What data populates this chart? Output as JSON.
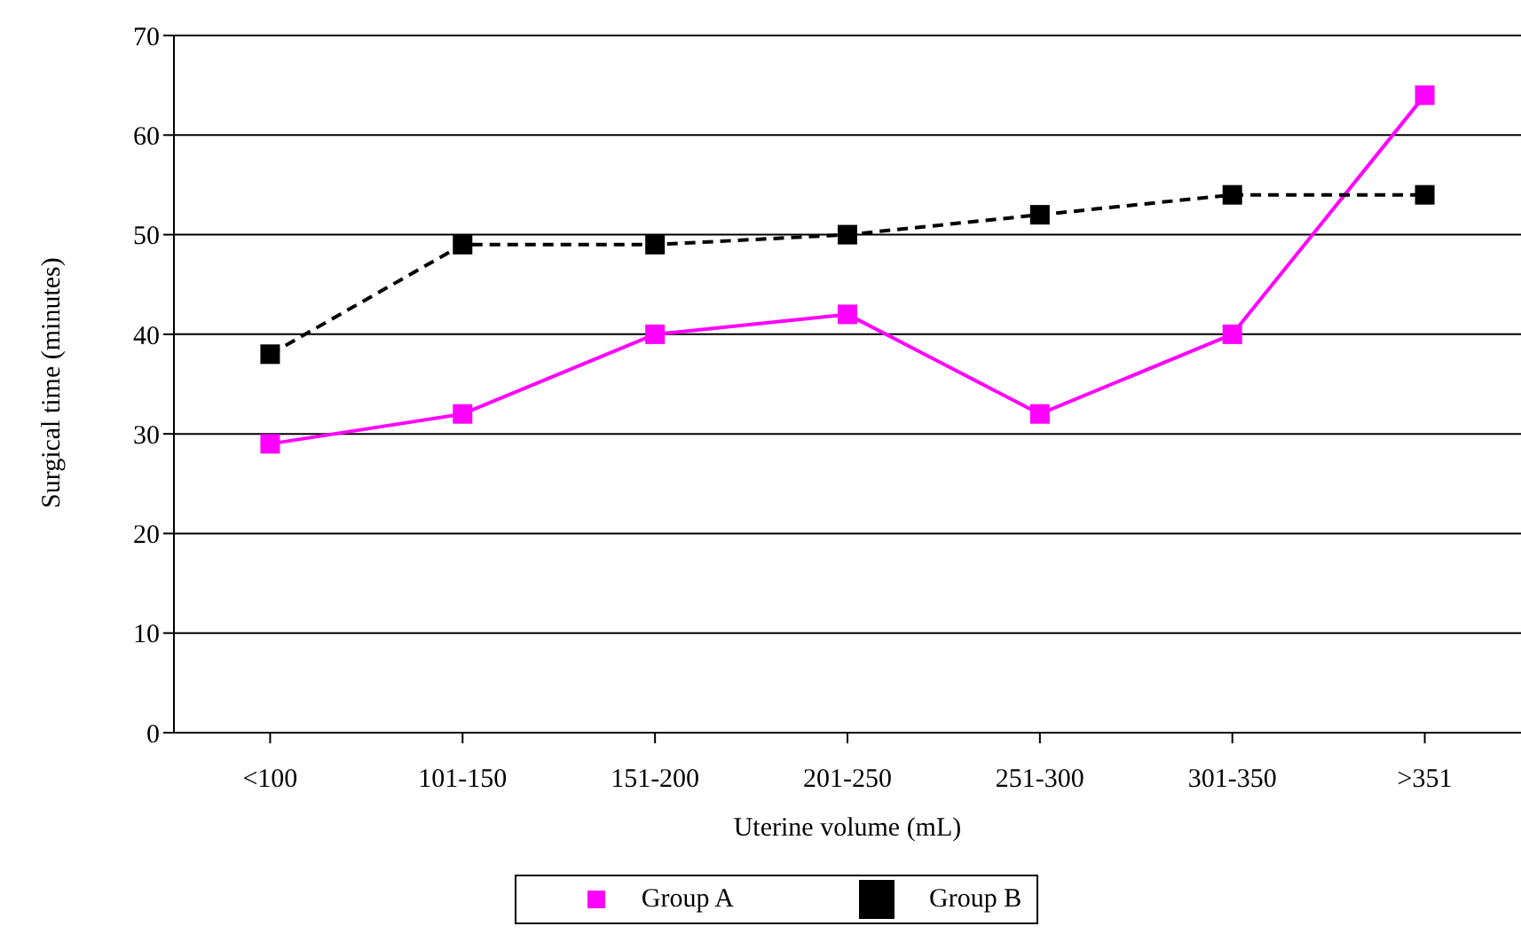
{
  "chart_data": {
    "type": "line",
    "xlabel": "Uterine volume (mL)",
    "ylabel": "Surgical time (minutes)",
    "categories": [
      "<100",
      "101-150",
      "151-200",
      "201-250",
      "251-300",
      "301-350",
      ">351"
    ],
    "series": [
      {
        "name": "Group A",
        "color": "#ff00ff",
        "values": [
          29,
          32,
          40,
          42,
          32,
          40,
          64
        ],
        "line_style": "solid"
      },
      {
        "name": "Group B",
        "color": "#000000",
        "values": [
          38,
          49,
          49,
          50,
          52,
          54,
          54
        ],
        "line_style": "dashed"
      }
    ],
    "ylim": [
      0,
      70
    ],
    "yticks": [
      0,
      10,
      20,
      30,
      40,
      50,
      60,
      70
    ],
    "grid": "y",
    "legend": "bottom",
    "marker": "square"
  }
}
